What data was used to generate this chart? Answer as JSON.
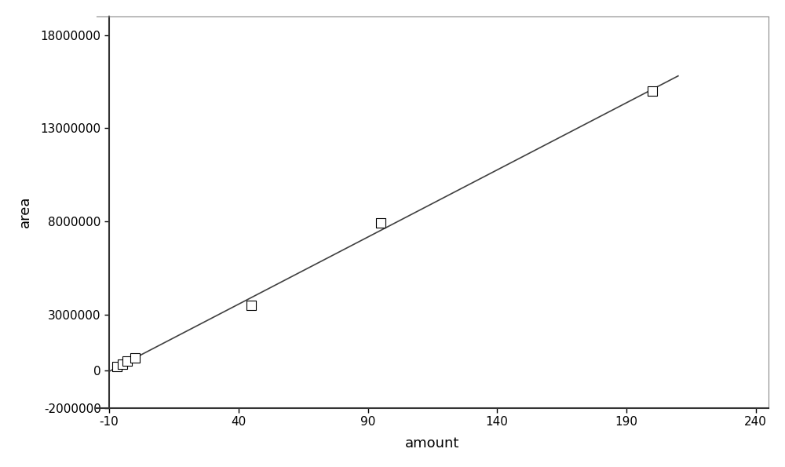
{
  "x_data": [
    -7,
    -5,
    -3,
    0,
    45,
    95,
    200
  ],
  "y_data": [
    200000,
    350000,
    500000,
    700000,
    3500000,
    7900000,
    15000000
  ],
  "xlabel": "amount",
  "ylabel": "area",
  "xlim": [
    -15,
    245
  ],
  "ylim": [
    -2000000,
    19000000
  ],
  "xticks": [
    -10,
    40,
    90,
    140,
    190,
    240
  ],
  "yticks": [
    -2000000,
    0,
    3000000,
    8000000,
    13000000,
    18000000
  ],
  "marker": "s",
  "marker_size": 8,
  "marker_facecolor": "white",
  "marker_edgecolor": "black",
  "line_color": "#404040",
  "background_color": "white",
  "line_start_x": -10,
  "line_end_x": 210
}
